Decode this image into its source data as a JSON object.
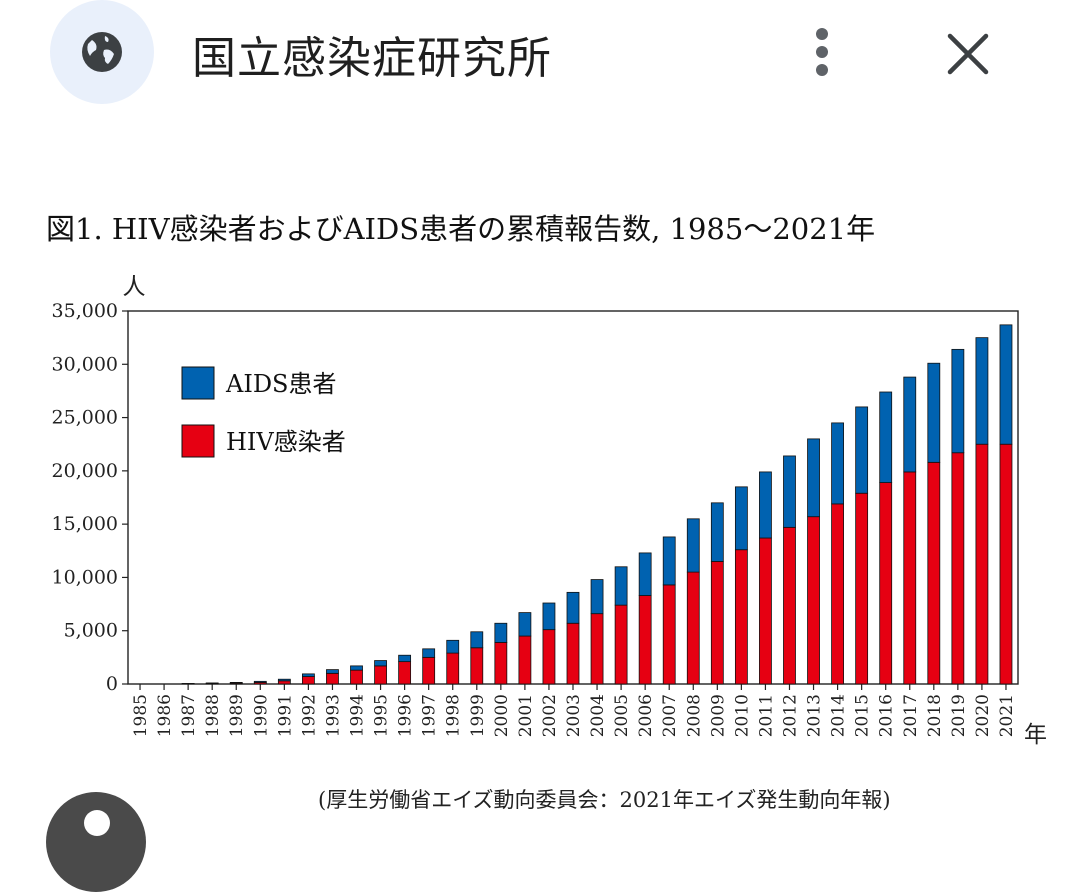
{
  "header": {
    "title": "国立感染症研究所",
    "icons": {
      "site": "globe-icon",
      "menu": "more-vert-icon",
      "close": "close-icon"
    }
  },
  "chart_data": {
    "type": "bar",
    "stacked": true,
    "title": "図1. HIV感染者およびAIDS患者の累積報告数, 1985〜2021年",
    "ylabel": "人",
    "xlabel": "年",
    "ylim": [
      0,
      35000
    ],
    "yticks": [
      0,
      5000,
      10000,
      15000,
      20000,
      25000,
      30000,
      35000
    ],
    "ytick_labels": [
      "0",
      "5,000",
      "10,000",
      "15,000",
      "20,000",
      "25,000",
      "30,000",
      "35,000"
    ],
    "categories": [
      "1985",
      "1986",
      "1987",
      "1988",
      "1989",
      "1990",
      "1991",
      "1992",
      "1993",
      "1994",
      "1995",
      "1996",
      "1997",
      "1998",
      "1999",
      "2000",
      "2001",
      "2002",
      "2003",
      "2004",
      "2005",
      "2006",
      "2007",
      "2008",
      "2009",
      "2010",
      "2011",
      "2012",
      "2013",
      "2014",
      "2015",
      "2016",
      "2017",
      "2018",
      "2019",
      "2020",
      "2021"
    ],
    "series": [
      {
        "name": "HIV感染者",
        "color": "#e60012",
        "values": [
          0,
          0,
          30,
          60,
          80,
          150,
          300,
          700,
          1000,
          1300,
          1700,
          2100,
          2500,
          2900,
          3400,
          3900,
          4500,
          5100,
          5700,
          6600,
          7400,
          8300,
          9300,
          10500,
          11500,
          12600,
          13700,
          14700,
          15700,
          16900,
          17900,
          18900,
          19900,
          20800,
          21700,
          22500,
          22500
        ]
      },
      {
        "name": "AIDS患者",
        "color": "#0062b0",
        "values": [
          0,
          0,
          20,
          40,
          70,
          100,
          150,
          250,
          350,
          400,
          500,
          600,
          800,
          1200,
          1500,
          1800,
          2200,
          2500,
          2900,
          3200,
          3600,
          4000,
          4500,
          5000,
          5500,
          5900,
          6200,
          6700,
          7300,
          7600,
          8100,
          8500,
          8900,
          9300,
          9700,
          10000,
          11200
        ]
      }
    ],
    "legend": {
      "position": "top-left",
      "items": [
        "AIDS患者",
        "HIV感染者"
      ]
    },
    "grid": false
  },
  "source": "(厚生労働省エイズ動向委員会：2021年エイズ発生動向年報)",
  "fab": {
    "icon": "account-icon"
  }
}
